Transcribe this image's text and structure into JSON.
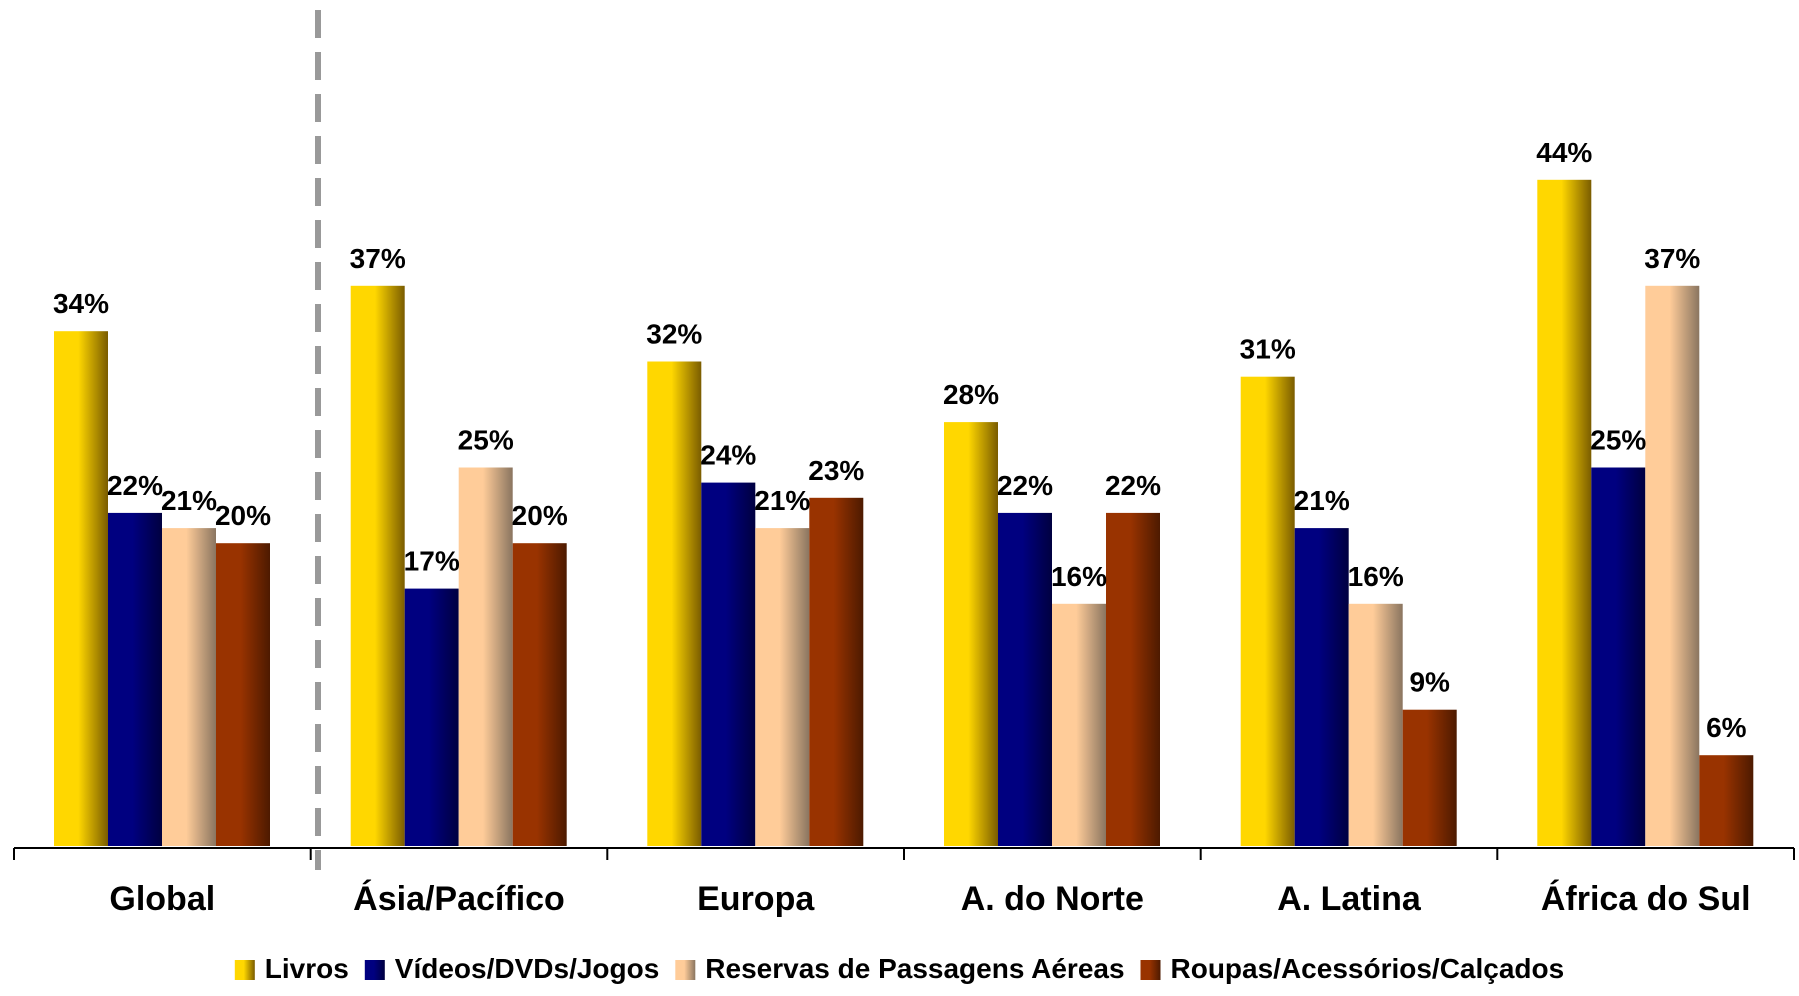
{
  "chart_data": {
    "type": "bar",
    "categories": [
      "Global",
      "Ásia/Pacífico",
      "Europa",
      "A. do Norte",
      "A. Latina",
      "África do Sul"
    ],
    "series": [
      {
        "name": "Livros",
        "values": [
          34,
          37,
          32,
          28,
          31,
          44
        ],
        "labels": [
          "34%",
          "37%",
          "32%",
          "28%",
          "31%",
          "44%"
        ]
      },
      {
        "name": "Vídeos/DVDs/Jogos",
        "values": [
          22,
          17,
          24,
          22,
          21,
          25
        ],
        "labels": [
          "22%",
          "17%",
          "24%",
          "22%",
          "21%",
          "25%"
        ]
      },
      {
        "name": "Reservas de Passagens Aéreas",
        "values": [
          21,
          25,
          21,
          16,
          16,
          37
        ],
        "labels": [
          "21%",
          "25%",
          "21%",
          "16%",
          "16%",
          "37%"
        ]
      },
      {
        "name": "Roupas/Acessórios/Calçados",
        "values": [
          20,
          20,
          23,
          22,
          9,
          6
        ],
        "labels": [
          "20%",
          "20%",
          "23%",
          "22%",
          "9%",
          "6%"
        ]
      }
    ],
    "colors": {
      "Livros": [
        "#FFD700",
        "#7A5C00"
      ],
      "Vídeos/DVDs/Jogos": [
        "#000080",
        "#000040"
      ],
      "Reservas de Passagens Aéreas": [
        "#FFCC99",
        "#8A7560"
      ],
      "Roupas/Acessórios/Calçados": [
        "#993300",
        "#4D1A00"
      ]
    },
    "ylim": [
      0,
      50
    ],
    "legend_position": "bottom",
    "grid": false,
    "separator": "dashed line after Global"
  }
}
